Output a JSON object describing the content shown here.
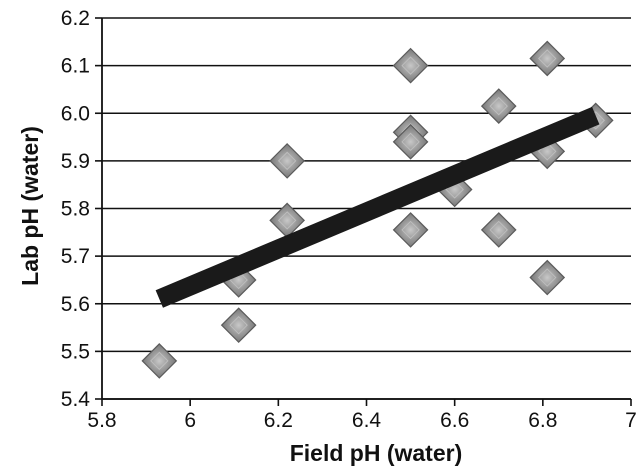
{
  "chart_data": {
    "type": "scatter",
    "title": "",
    "xlabel": "Field pH (water)",
    "ylabel": "Lab pH (water)",
    "xlim": [
      5.8,
      7.0
    ],
    "ylim": [
      5.4,
      6.2
    ],
    "x_ticks": [
      5.8,
      6.0,
      6.2,
      6.4,
      6.6,
      6.8,
      7.0
    ],
    "x_tick_labels": [
      "5.8",
      "6",
      "6.2",
      "6.4",
      "6.6",
      "6.8",
      "7"
    ],
    "y_ticks": [
      5.4,
      5.5,
      5.6,
      5.7,
      5.8,
      5.9,
      6.0,
      6.1,
      6.2
    ],
    "y_tick_labels": [
      "5.4",
      "5.5",
      "5.6",
      "5.7",
      "5.8",
      "5.9",
      "6.0",
      "6.1",
      "6.2"
    ],
    "grid": {
      "horizontal": true,
      "vertical": false
    },
    "marker": "diamond",
    "marker_color": "#8c8c8c",
    "series": [
      {
        "points": [
          [
            5.93,
            5.48
          ],
          [
            6.11,
            5.65
          ],
          [
            6.11,
            5.555
          ],
          [
            6.22,
            5.9
          ],
          [
            6.22,
            5.775
          ],
          [
            6.5,
            6.1
          ],
          [
            6.5,
            5.96
          ],
          [
            6.5,
            5.94
          ],
          [
            6.5,
            5.755
          ],
          [
            6.6,
            5.84
          ],
          [
            6.7,
            6.015
          ],
          [
            6.7,
            5.755
          ],
          [
            6.81,
            6.115
          ],
          [
            6.81,
            5.92
          ],
          [
            6.81,
            5.655
          ],
          [
            6.92,
            5.985
          ]
        ]
      }
    ],
    "trendline": {
      "x": [
        5.93,
        6.92
      ],
      "y": [
        5.61,
        5.995
      ],
      "color": "#1a1a1a"
    }
  }
}
